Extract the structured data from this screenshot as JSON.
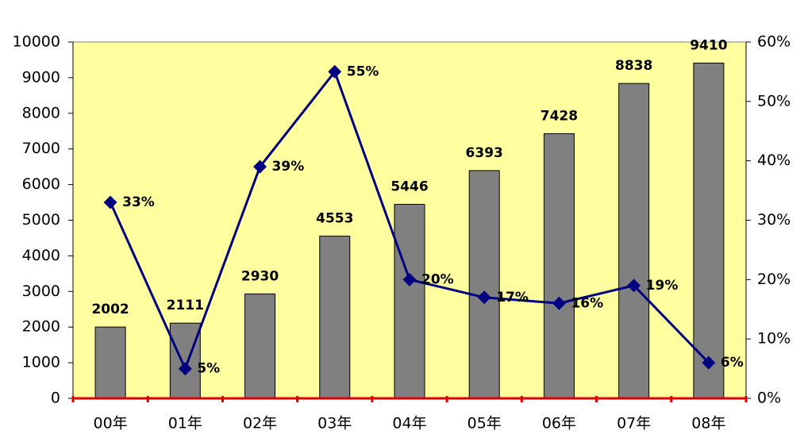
{
  "chart_data": {
    "type": "bar",
    "categories": [
      "00年",
      "01年",
      "02年",
      "03年",
      "04年",
      "05年",
      "06年",
      "07年",
      "08年"
    ],
    "series": [
      {
        "type": "bar",
        "color": "#808080",
        "values": [
          2002,
          2111,
          2930,
          4553,
          5446,
          6393,
          7428,
          8838,
          9410
        ]
      },
      {
        "type": "line",
        "axis": "y2",
        "color": "#000080",
        "values": [
          33,
          5,
          39,
          55,
          20,
          17,
          16,
          19,
          6
        ],
        "value_labels": [
          "33%",
          "5%",
          "39%",
          "55%",
          "20%",
          "17%",
          "16%",
          "19%",
          "6%"
        ]
      }
    ],
    "ylim": [
      0,
      10000
    ],
    "yticks": [
      0,
      1000,
      2000,
      3000,
      4000,
      5000,
      6000,
      7000,
      8000,
      9000,
      10000
    ],
    "y2lim": [
      0,
      60
    ],
    "y2ticks": [
      {
        "value": 0,
        "label": "0%"
      },
      {
        "value": 10,
        "label": "10%"
      },
      {
        "value": 20,
        "label": "20%"
      },
      {
        "value": 30,
        "label": "30%"
      },
      {
        "value": 40,
        "label": "40%"
      },
      {
        "value": 50,
        "label": "50%"
      },
      {
        "value": 60,
        "label": "60%"
      }
    ],
    "plot_background": "#ffffa0",
    "x_axis_color": "#e00000"
  }
}
